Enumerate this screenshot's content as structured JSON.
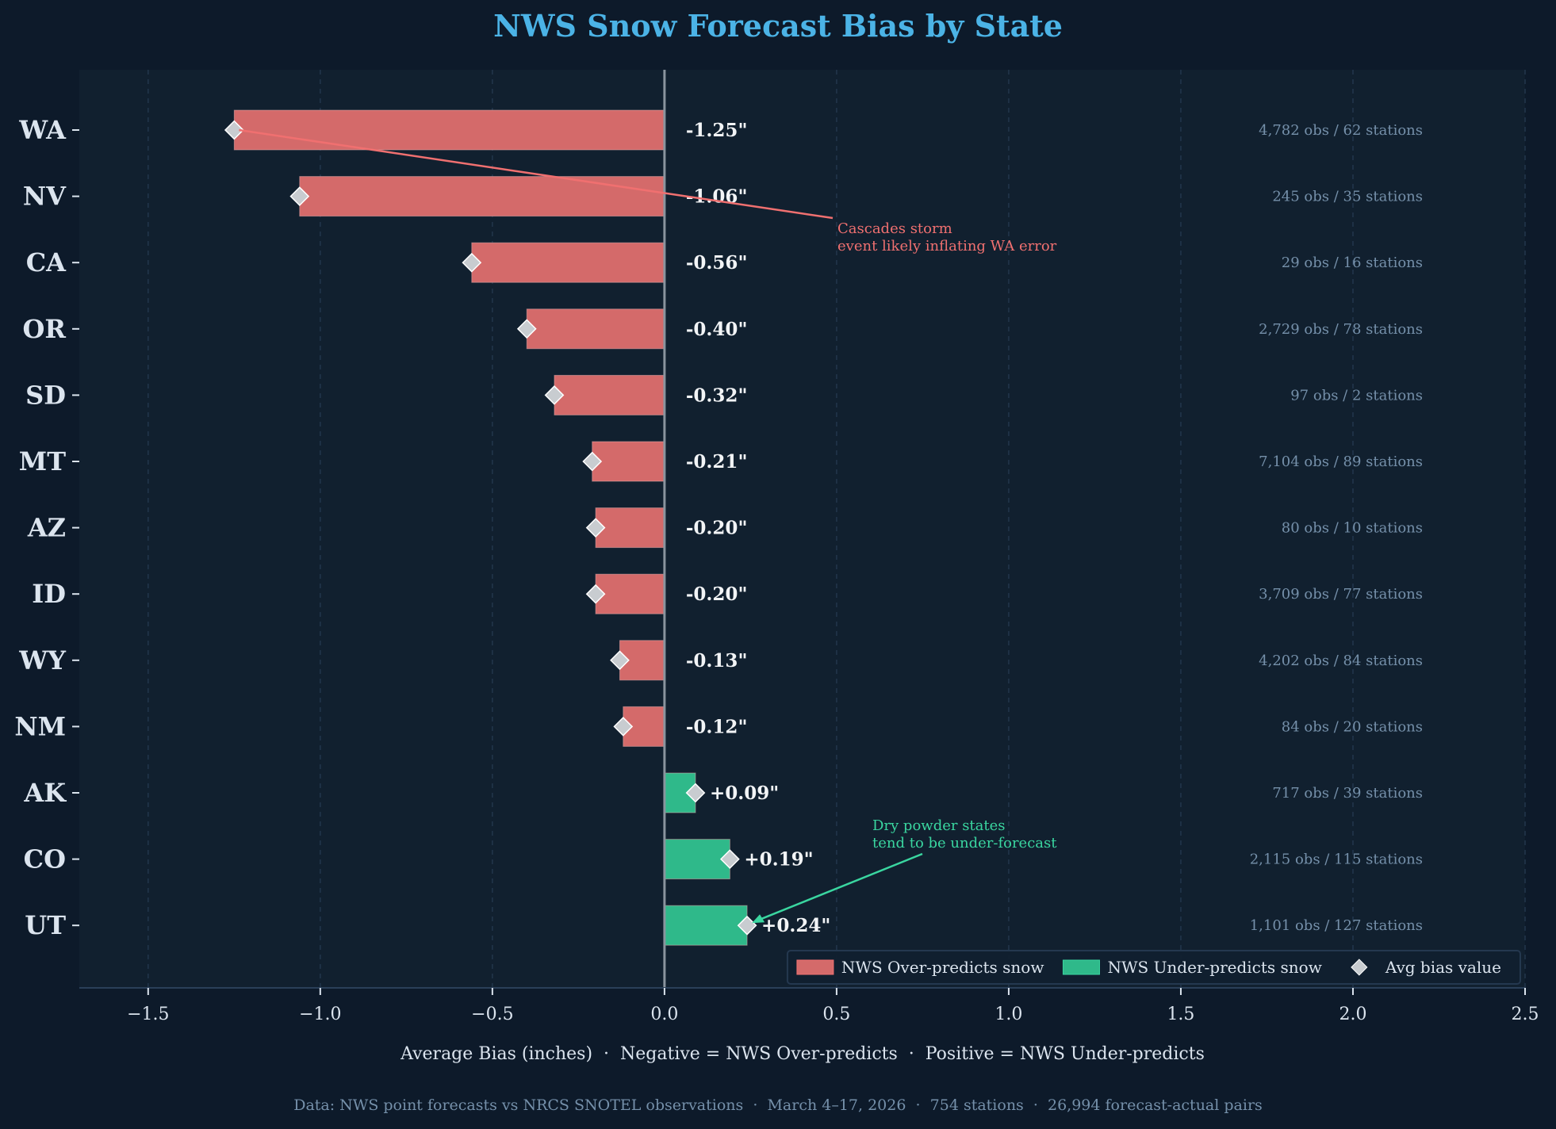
{
  "chart_data": {
    "type": "bar",
    "orientation": "horizontal",
    "title": "NWS Snow Forecast Bias by State",
    "xlabel": "Average Bias (inches)  ·  Negative = NWS Over-predicts  ·  Positive = NWS Under-predicts",
    "footer": "Data: NWS point forecasts vs NRCS SNOTEL observations  ·  March 4–17, 2026  ·  754 stations  ·  26,994 forecast-actual pairs",
    "xlim": [
      -1.7,
      2.5
    ],
    "xticks": [
      -1.5,
      -1.0,
      -0.5,
      0.0,
      0.5,
      1.0,
      1.5,
      2.0,
      2.5
    ],
    "xtick_labels": [
      "−1.5",
      "−1.0",
      "−0.5",
      "0.0",
      "0.5",
      "1.0",
      "1.5",
      "2.0",
      "2.5"
    ],
    "grid": "x dashed",
    "categories": [
      "WA",
      "NV",
      "CA",
      "OR",
      "SD",
      "MT",
      "AZ",
      "ID",
      "WY",
      "NM",
      "AK",
      "CO",
      "UT"
    ],
    "values": [
      -1.25,
      -1.06,
      -0.56,
      -0.4,
      -0.32,
      -0.21,
      -0.2,
      -0.2,
      -0.13,
      -0.12,
      0.09,
      0.19,
      0.24
    ],
    "value_labels": [
      "-1.25\"",
      "-1.06\"",
      "-0.56\"",
      "-0.40\"",
      "-0.32\"",
      "-0.21\"",
      "-0.20\"",
      "-0.20\"",
      "-0.13\"",
      "-0.12\"",
      "+0.09\"",
      "+0.19\"",
      "+0.24\""
    ],
    "obs_labels": [
      "4,782 obs / 62 stations",
      "245 obs / 35 stations",
      "29 obs / 16 stations",
      "2,729 obs / 78 stations",
      "97 obs / 2 stations",
      "7,104 obs / 89 stations",
      "80 obs / 10 stations",
      "3,709 obs / 77 stations",
      "4,202 obs / 84 stations",
      "84 obs / 20 stations",
      "717 obs / 39 stations",
      "2,115 obs / 115 stations",
      "1,101 obs / 127 stations"
    ],
    "legend": {
      "placement": "lower-right",
      "entries": [
        "NWS Over-predicts snow",
        "NWS Under-predicts snow",
        "Avg bias value"
      ]
    },
    "annotations": [
      {
        "lines": [
          "Cascades storm",
          "event likely inflating WA error"
        ],
        "target": "WA",
        "color": "#f07070"
      },
      {
        "lines": [
          "Dry powder states",
          "tend to be under-forecast"
        ],
        "target": "UT",
        "color": "#3ad6a0"
      }
    ],
    "colors": {
      "over": "#d46a6a",
      "under": "#2fb98a",
      "marker": "#c8ccd0",
      "title": "#4bb3e6",
      "background": "#0d1a2a",
      "plot_background": "#11202f"
    }
  }
}
